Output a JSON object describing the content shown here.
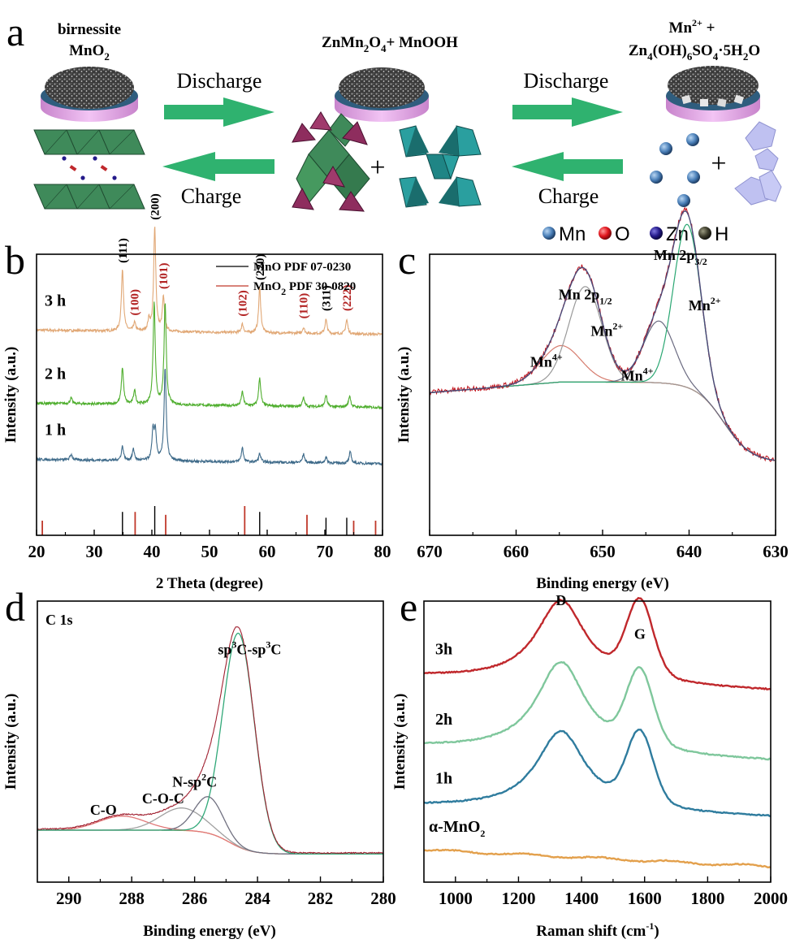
{
  "figure": {
    "panels": {
      "a": {
        "letter": "a",
        "stages": [
          {
            "title_line1": "birnessite",
            "title_line2_main": "MnO",
            "title_line2_sub": "2"
          },
          {
            "title_main": "ZnMn",
            "title_sub1": "2",
            "title_mid": "O",
            "title_sub2": "4",
            "title_tail": "+ MnOOH"
          },
          {
            "title_line1_main": "Mn",
            "title_line1_sup": "2+",
            "title_line1_tail": " +",
            "title_line2_parts": [
              {
                "t": "Zn",
                "k": "n"
              },
              {
                "t": "4",
                "k": "sub"
              },
              {
                "t": "(OH)",
                "k": "n"
              },
              {
                "t": "6",
                "k": "sub"
              },
              {
                "t": "SO",
                "k": "n"
              },
              {
                "t": "4",
                "k": "sub"
              },
              {
                "t": "·5H",
                "k": "n"
              },
              {
                "t": "2",
                "k": "sub"
              },
              {
                "t": "O",
                "k": "n"
              }
            ]
          }
        ],
        "arrows": {
          "discharge_label": "Discharge",
          "charge_label": "Charge"
        },
        "plus": "+",
        "atom_legend": [
          {
            "symbol": "Mn",
            "color": "#4a7fb8"
          },
          {
            "symbol": "O",
            "color": "#e0141c"
          },
          {
            "symbol": "Zn",
            "color": "#241a8a"
          },
          {
            "symbol": "H",
            "color": "#3e3d2c"
          }
        ],
        "colors": {
          "arrow": "#2fb26f",
          "substrate": "#e2a3e6",
          "birnessite": "#3f8a5a",
          "spinel_tet": "#8e2d5e",
          "mnooh": "#2a9f9f",
          "zhs": "#bfc1f1"
        }
      }
    }
  },
  "chart_data": [
    {
      "panel": "b",
      "type": "line",
      "title": "",
      "xlabel": "2 Theta (degree)",
      "ylabel": "Intensity (a.u.)",
      "xlim": [
        20,
        80
      ],
      "xticks": [
        20,
        30,
        40,
        50,
        60,
        70,
        80
      ],
      "yticks": [],
      "legend": {
        "placement": "top-right",
        "entries": [
          {
            "main": "MnO  PDF 07-0230",
            "color": "#000000"
          },
          {
            "main": "MnO",
            "sub": "2",
            "tail": " PDF 30-0820",
            "color": "#c0392b"
          }
        ]
      },
      "series": [
        {
          "name": "3 h",
          "color": "#e1a876",
          "baseline": 0.73,
          "peaks": [
            [
              34.9,
              0.22
            ],
            [
              37.0,
              0.03
            ],
            [
              39.5,
              0.04
            ],
            [
              40.5,
              0.37
            ],
            [
              42.0,
              0.12
            ],
            [
              55.7,
              0.03
            ],
            [
              58.7,
              0.16
            ],
            [
              66.3,
              0.02
            ],
            [
              70.2,
              0.05
            ],
            [
              73.8,
              0.05
            ]
          ]
        },
        {
          "name": "2 h",
          "color": "#4fae2e",
          "baseline": 0.47,
          "peaks": [
            [
              26.0,
              0.02
            ],
            [
              34.9,
              0.13
            ],
            [
              37.0,
              0.05
            ],
            [
              40.4,
              0.36
            ],
            [
              42.3,
              0.36
            ],
            [
              55.7,
              0.05
            ],
            [
              58.7,
              0.1
            ],
            [
              66.3,
              0.03
            ],
            [
              70.2,
              0.04
            ],
            [
              74.3,
              0.04
            ]
          ]
        },
        {
          "name": "1 h",
          "color": "#3f6b8a",
          "baseline": 0.27,
          "peaks": [
            [
              26.0,
              0.02
            ],
            [
              34.9,
              0.05
            ],
            [
              36.8,
              0.04
            ],
            [
              40.2,
              0.1
            ],
            [
              40.6,
              0.1
            ],
            [
              42.3,
              0.33
            ],
            [
              55.7,
              0.05
            ],
            [
              58.7,
              0.03
            ],
            [
              66.3,
              0.03
            ],
            [
              70.2,
              0.02
            ],
            [
              74.4,
              0.04
            ]
          ]
        }
      ],
      "reference_sticks": {
        "MnO": {
          "color": "#000000",
          "x": [
            34.9,
            40.5,
            58.7,
            70.2,
            73.8
          ],
          "rel": [
            0.8,
            1.0,
            0.8,
            0.6,
            0.6
          ]
        },
        "MnO2": {
          "color": "#c0392b",
          "x": [
            21.0,
            37.1,
            42.4,
            56.1,
            66.9,
            75.0,
            78.8
          ],
          "rel": [
            0.5,
            0.8,
            0.7,
            1.0,
            0.7,
            0.5,
            0.5
          ]
        }
      },
      "peak_labels": [
        {
          "text": "(111)",
          "x": 34.9,
          "color": "#000000"
        },
        {
          "text": "(100)",
          "x": 37.0,
          "color": "#b22222"
        },
        {
          "text": "(200)",
          "x": 40.5,
          "color": "#000000"
        },
        {
          "text": "(101)",
          "x": 42.0,
          "color": "#b22222"
        },
        {
          "text": "(102)",
          "x": 55.7,
          "color": "#b22222"
        },
        {
          "text": "(220)",
          "x": 58.7,
          "color": "#000000"
        },
        {
          "text": "(110)",
          "x": 66.3,
          "color": "#b22222"
        },
        {
          "text": "(311)",
          "x": 70.2,
          "color": "#000000"
        },
        {
          "text": "(222)",
          "x": 73.8,
          "color": "#b22222"
        }
      ]
    },
    {
      "panel": "c",
      "type": "line",
      "title": "",
      "xlabel": "Binding energy (eV)",
      "ylabel": "Intensity (a.u.)",
      "xlim": [
        670,
        630
      ],
      "xticks": [
        670,
        660,
        650,
        640,
        630
      ],
      "yticks": [],
      "background": {
        "high": 0.545,
        "low": 0.26,
        "step_center": 636.0
      },
      "components": [
        {
          "name": "Mn4+ (2p1/2)",
          "center": 654.8,
          "height": 0.13,
          "width": 2.3,
          "color": "#d67c6e"
        },
        {
          "name": "Mn2+ (2p1/2)",
          "center": 652.0,
          "height": 0.34,
          "width": 1.9,
          "color": "#9a9a9a"
        },
        {
          "name": "Mn4+ (2p3/2)",
          "center": 643.5,
          "height": 0.22,
          "width": 1.8,
          "color": "#6a6a80"
        },
        {
          "name": "Mn2+ (2p3/2)",
          "center": 640.2,
          "height": 0.58,
          "width": 1.6,
          "color": "#2aa772"
        }
      ],
      "raw_color": "#c0121b",
      "envelope_color": "#4b4b7a",
      "annotations": [
        {
          "main": "Mn 2p",
          "sub": "3/2",
          "x": 641,
          "y": 0.98
        },
        {
          "main": "Mn 2p",
          "sub": "1/2",
          "x": 652,
          "y": 0.84
        },
        {
          "main": "Mn",
          "sup": "2+",
          "x": 638.2,
          "y": 0.8
        },
        {
          "main": "Mn",
          "sup": "2+",
          "x": 649.5,
          "y": 0.71
        },
        {
          "main": "Mn",
          "sup": "4+",
          "x": 656.5,
          "y": 0.6
        },
        {
          "main": "Mn",
          "sup": "4+",
          "x": 646.0,
          "y": 0.55
        }
      ]
    },
    {
      "panel": "d",
      "type": "line",
      "title": "",
      "corner_label": "C 1s",
      "xlabel": "Binding energy (eV)",
      "ylabel": "Intensity (a.u.)",
      "xlim": [
        291,
        280
      ],
      "xticks": [
        290,
        288,
        286,
        284,
        282,
        280
      ],
      "yticks": [],
      "background": {
        "high": 0.185,
        "low": 0.1,
        "step_center": 284.9
      },
      "components": [
        {
          "name": "C-O",
          "center": 288.3,
          "height": 0.05,
          "width": 0.75,
          "color": "#e07878"
        },
        {
          "name": "C-O-C",
          "center": 286.4,
          "height": 0.08,
          "width": 0.7,
          "color": "#a0a0a0"
        },
        {
          "name": "N-sp2C",
          "center": 285.55,
          "height": 0.13,
          "width": 0.45,
          "color": "#707080"
        },
        {
          "name": "sp3C-sp3C",
          "center": 284.6,
          "height": 0.76,
          "width": 0.5,
          "color": "#30a878"
        }
      ],
      "raw_color": "#a02030",
      "annotations": [
        {
          "parts": [
            {
              "t": "sp",
              "k": "n"
            },
            {
              "t": "3",
              "k": "sup"
            },
            {
              "t": "C-sp",
              "k": "n"
            },
            {
              "t": "3",
              "k": "sup"
            },
            {
              "t": "C",
              "k": "n"
            }
          ],
          "x": 284.25,
          "y": 0.81
        },
        {
          "parts": [
            {
              "t": "N-sp",
              "k": "n"
            },
            {
              "t": "2",
              "k": "sup"
            },
            {
              "t": "C",
              "k": "n"
            }
          ],
          "x": 286.0,
          "y": 0.34
        },
        {
          "parts": [
            {
              "t": "C-O-C",
              "k": "n"
            }
          ],
          "x": 287.0,
          "y": 0.28
        },
        {
          "parts": [
            {
              "t": "C-O",
              "k": "n"
            }
          ],
          "x": 288.9,
          "y": 0.24
        }
      ]
    },
    {
      "panel": "e",
      "type": "line",
      "title": "",
      "xlabel_main": "Raman shift (cm",
      "xlabel_sup": "-1",
      "xlabel_tail": ")",
      "ylabel": "Intensity (a.u.)",
      "xlim": [
        900,
        2000
      ],
      "xticks": [
        1000,
        1200,
        1400,
        1600,
        1800,
        2000
      ],
      "yticks": [],
      "band_labels": [
        {
          "text": "D",
          "x": 1335
        },
        {
          "text": "G",
          "x": 1585
        }
      ],
      "series": [
        {
          "name": "3h",
          "color": "#c0282c",
          "offset": 0.68,
          "d": 0.29,
          "g": 0.22,
          "slope": 0.05
        },
        {
          "name": "2h",
          "color": "#7fc79c",
          "offset": 0.43,
          "d": 0.32,
          "g": 0.22,
          "slope": 0.05
        },
        {
          "name": "1h",
          "color": "#2f7c9e",
          "offset": 0.23,
          "d": 0.28,
          "g": 0.21,
          "slope": 0.04
        },
        {
          "name": "α-MnO",
          "name_sub": "2",
          "color": "#e3a04c",
          "offset": 0.055,
          "d": 0.0,
          "g": 0.0,
          "slope": 0.06
        }
      ]
    }
  ]
}
